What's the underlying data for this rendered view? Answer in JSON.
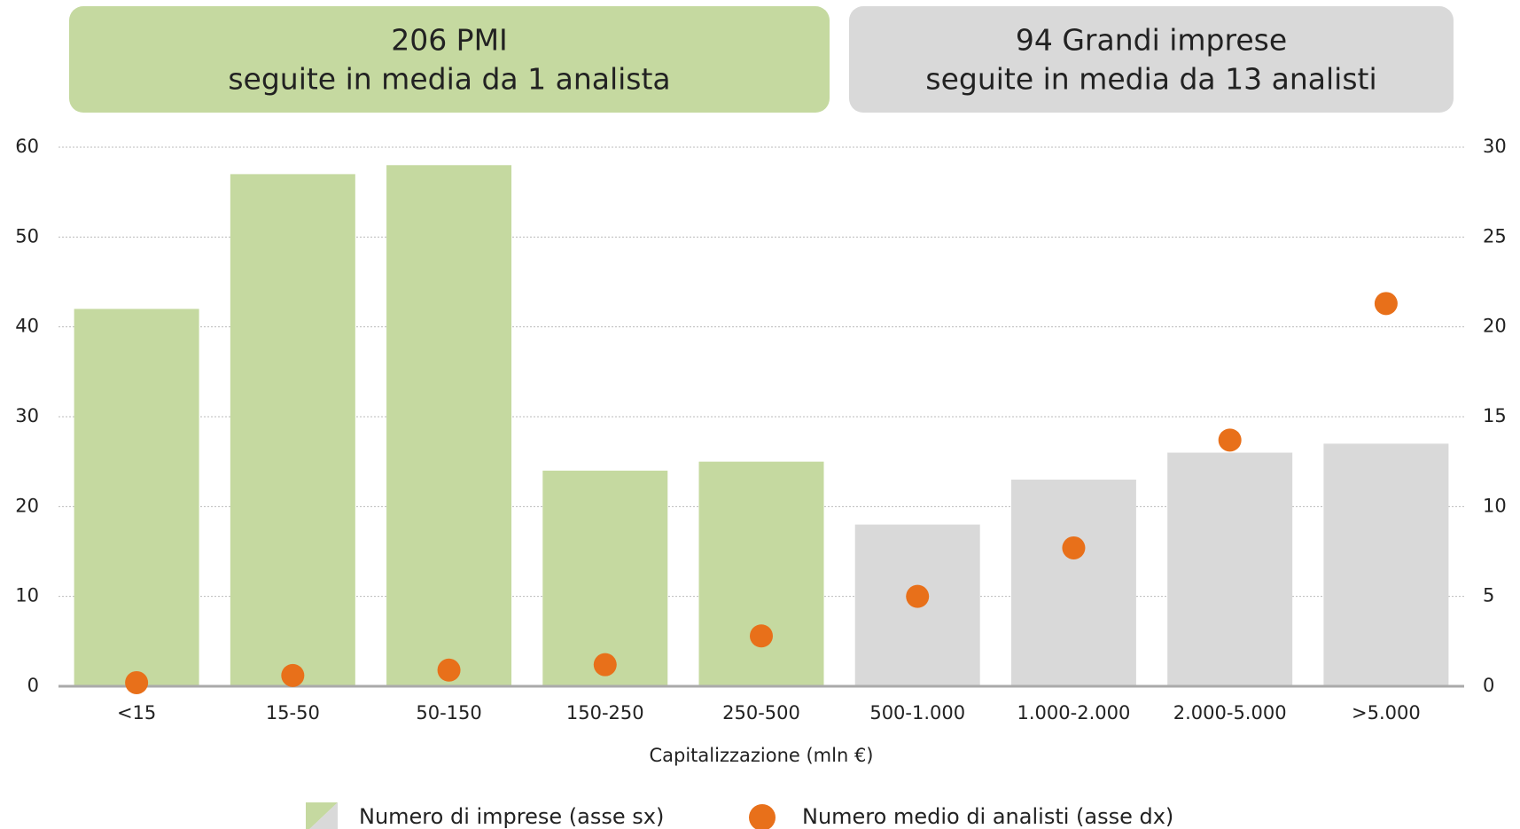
{
  "chart_data": {
    "type": "bar",
    "panels": [
      {
        "lines": [
          "206 PMI",
          "seguite in media da 1 analista"
        ],
        "color": "#c5d9a0"
      },
      {
        "lines": [
          "94 Grandi imprese",
          "seguite in media da 13 analisti"
        ],
        "color": "#d9d9d9"
      }
    ],
    "categories": [
      "<15",
      "15-50",
      "50-150",
      "150-250",
      "250-500",
      "500-1.000",
      "1.000-2.000",
      "2.000-5.000",
      ">5.000"
    ],
    "x_label": "Capitalizzazione (mln €)",
    "series": [
      {
        "name": "Numero di imprese (asse sx)",
        "type": "bar",
        "colors": [
          "#c5d9a0",
          "#c5d9a0",
          "#c5d9a0",
          "#c5d9a0",
          "#c5d9a0",
          "#d9d9d9",
          "#d9d9d9",
          "#d9d9d9",
          "#d9d9d9"
        ],
        "values": [
          42,
          57,
          58,
          24,
          25,
          18,
          23,
          26,
          27
        ]
      },
      {
        "name": "Numero medio di analisti (asse dx)",
        "type": "scatter",
        "axis": "y2",
        "color": "#e8701a",
        "values": [
          0.2,
          0.6,
          0.9,
          1.2,
          2.8,
          5.0,
          7.7,
          13.7,
          21.3
        ]
      }
    ],
    "ylim": [
      0,
      60
    ],
    "yticks": [
      0,
      10,
      20,
      30,
      40,
      50,
      60
    ],
    "y2lim": [
      0,
      30
    ],
    "y2ticks": [
      0,
      5,
      10,
      15,
      20,
      25,
      30
    ],
    "grid": true
  }
}
